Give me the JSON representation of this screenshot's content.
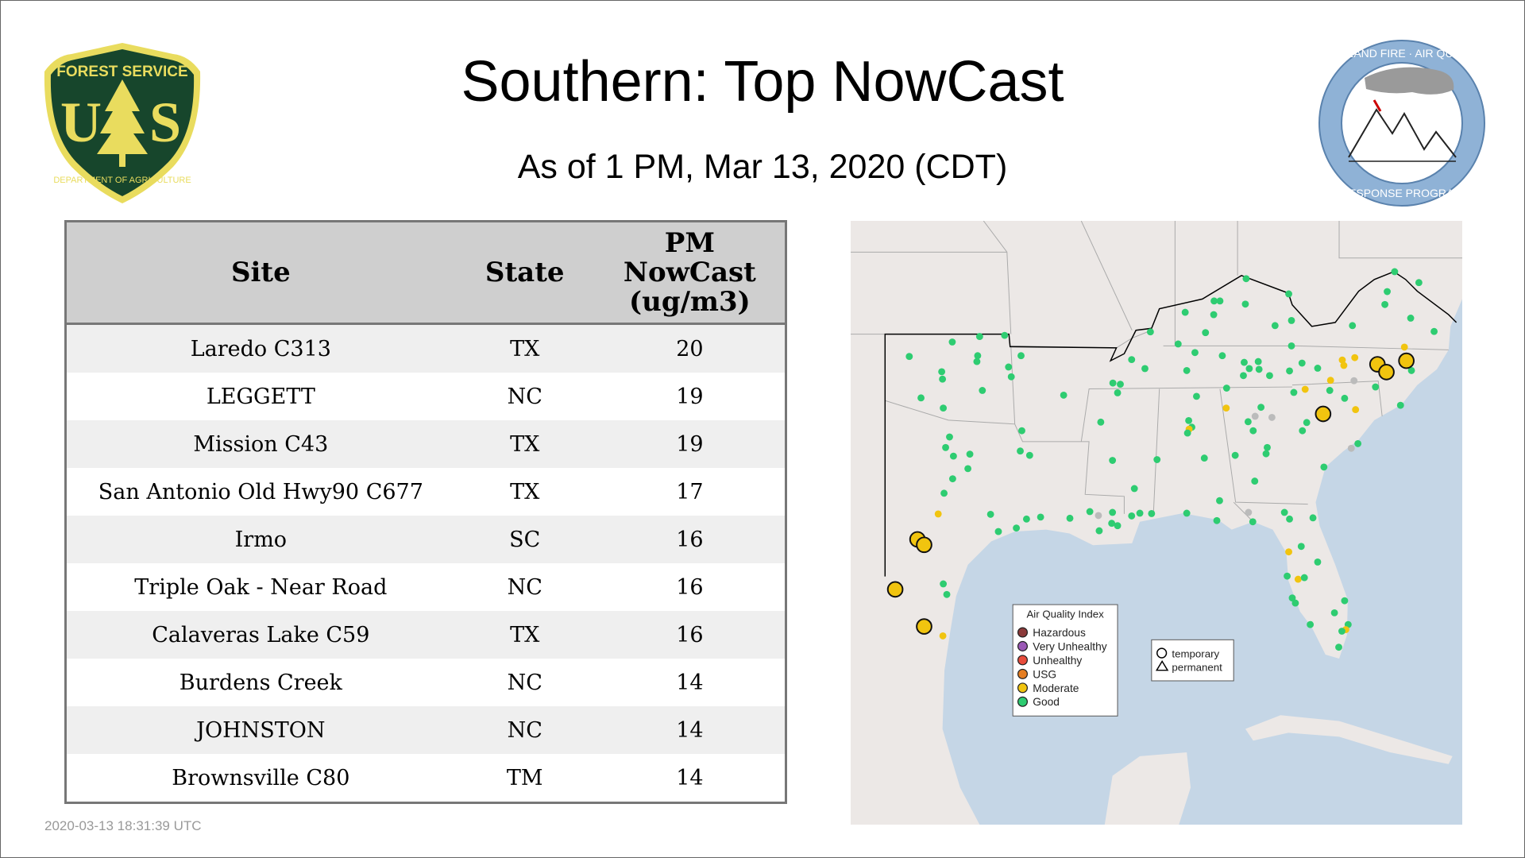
{
  "header": {
    "title": "Southern: Top NowCast",
    "subtitle": "As of  1 PM, Mar 13, 2020 (CDT)"
  },
  "logos": {
    "left": "FOREST SERVICE U S DEPARTMENT OF AGRICULTURE",
    "right": "WILDLAND FIRE · AIR QUALITY RESPONSE PROGRAM"
  },
  "table": {
    "headers": [
      "Site",
      "State",
      "PM NowCast (ug/m3)"
    ],
    "rows": [
      {
        "site": "Laredo C313",
        "state": "TX",
        "value": "20"
      },
      {
        "site": "LEGGETT",
        "state": "NC",
        "value": "19"
      },
      {
        "site": "Mission C43",
        "state": "TX",
        "value": "19"
      },
      {
        "site": "San Antonio Old Hwy90 C677",
        "state": "TX",
        "value": "17"
      },
      {
        "site": "Irmo",
        "state": "SC",
        "value": "16"
      },
      {
        "site": "Triple Oak - Near Road",
        "state": "NC",
        "value": "16"
      },
      {
        "site": "Calaveras Lake C59",
        "state": "TX",
        "value": "16"
      },
      {
        "site": "Burdens Creek",
        "state": "NC",
        "value": "14"
      },
      {
        "site": "JOHNSTON",
        "state": "NC",
        "value": "14"
      },
      {
        "site": "Brownsville C80",
        "state": "TM",
        "value": "14"
      }
    ]
  },
  "map": {
    "legend": {
      "title": "Air Quality Index",
      "items": [
        {
          "label": "Hazardous",
          "color": "#8b3a3a"
        },
        {
          "label": "Very Unhealthy",
          "color": "#9b59b6"
        },
        {
          "label": "Unhealthy",
          "color": "#e74c3c"
        },
        {
          "label": "USG",
          "color": "#e67e22"
        },
        {
          "label": "Moderate",
          "color": "#f1c40f"
        },
        {
          "label": "Good",
          "color": "#2ecc71"
        }
      ]
    },
    "shape_legend": {
      "items": [
        "temporary",
        "permanent"
      ]
    },
    "colors": {
      "land": "#ece8e6",
      "ocean": "#c5d6e6",
      "no_data": "#bbbbbb"
    }
  },
  "timestamp": "2020-03-13 18:31:39 UTC"
}
